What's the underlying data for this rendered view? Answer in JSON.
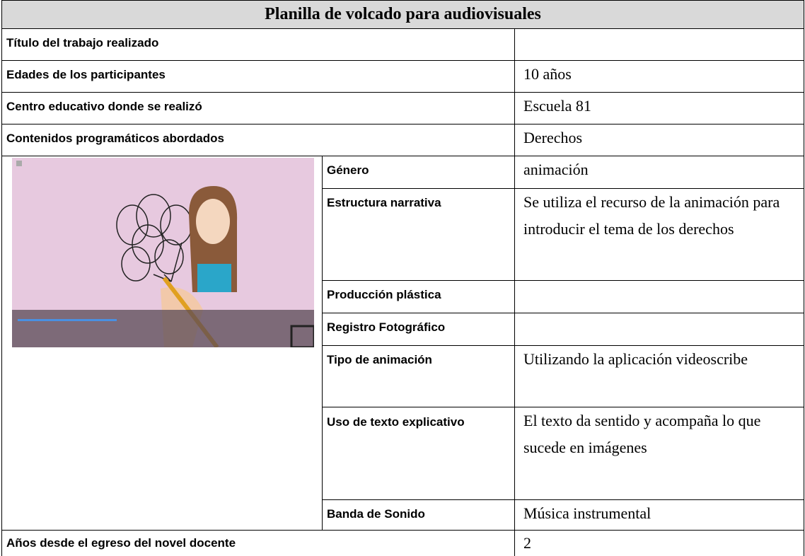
{
  "header": {
    "title": "Planilla de volcado para audiovisuales"
  },
  "rows": [
    {
      "label": "Título del trabajo realizado"
    },
    {
      "label": "Edades de los participantes",
      "value": "10 años"
    },
    {
      "label": "Centro educativo donde se realizó",
      "value": "Escuela 81"
    },
    {
      "label": "Contenidos programáticos abordados",
      "value": "Derechos"
    }
  ],
  "details": [
    {
      "label": "Género",
      "value": "animación"
    },
    {
      "label": "Estructura narrativa",
      "value": "Se utiliza el recurso de la animación para introducir el tema de los derechos"
    },
    {
      "label": "Producción plástica"
    },
    {
      "label": "Registro Fotográfico"
    },
    {
      "label": "Tipo de animación",
      "value": "Utilizando la aplicación videoscribe"
    },
    {
      "label": "Uso de texto explicativo",
      "value": "El texto da sentido y acompaña lo que sucede en imágenes"
    },
    {
      "label": "Banda de Sonido",
      "value": "Música instrumental"
    }
  ],
  "footer": {
    "label": "Años desde el egreso del novel docente",
    "value": "2"
  }
}
